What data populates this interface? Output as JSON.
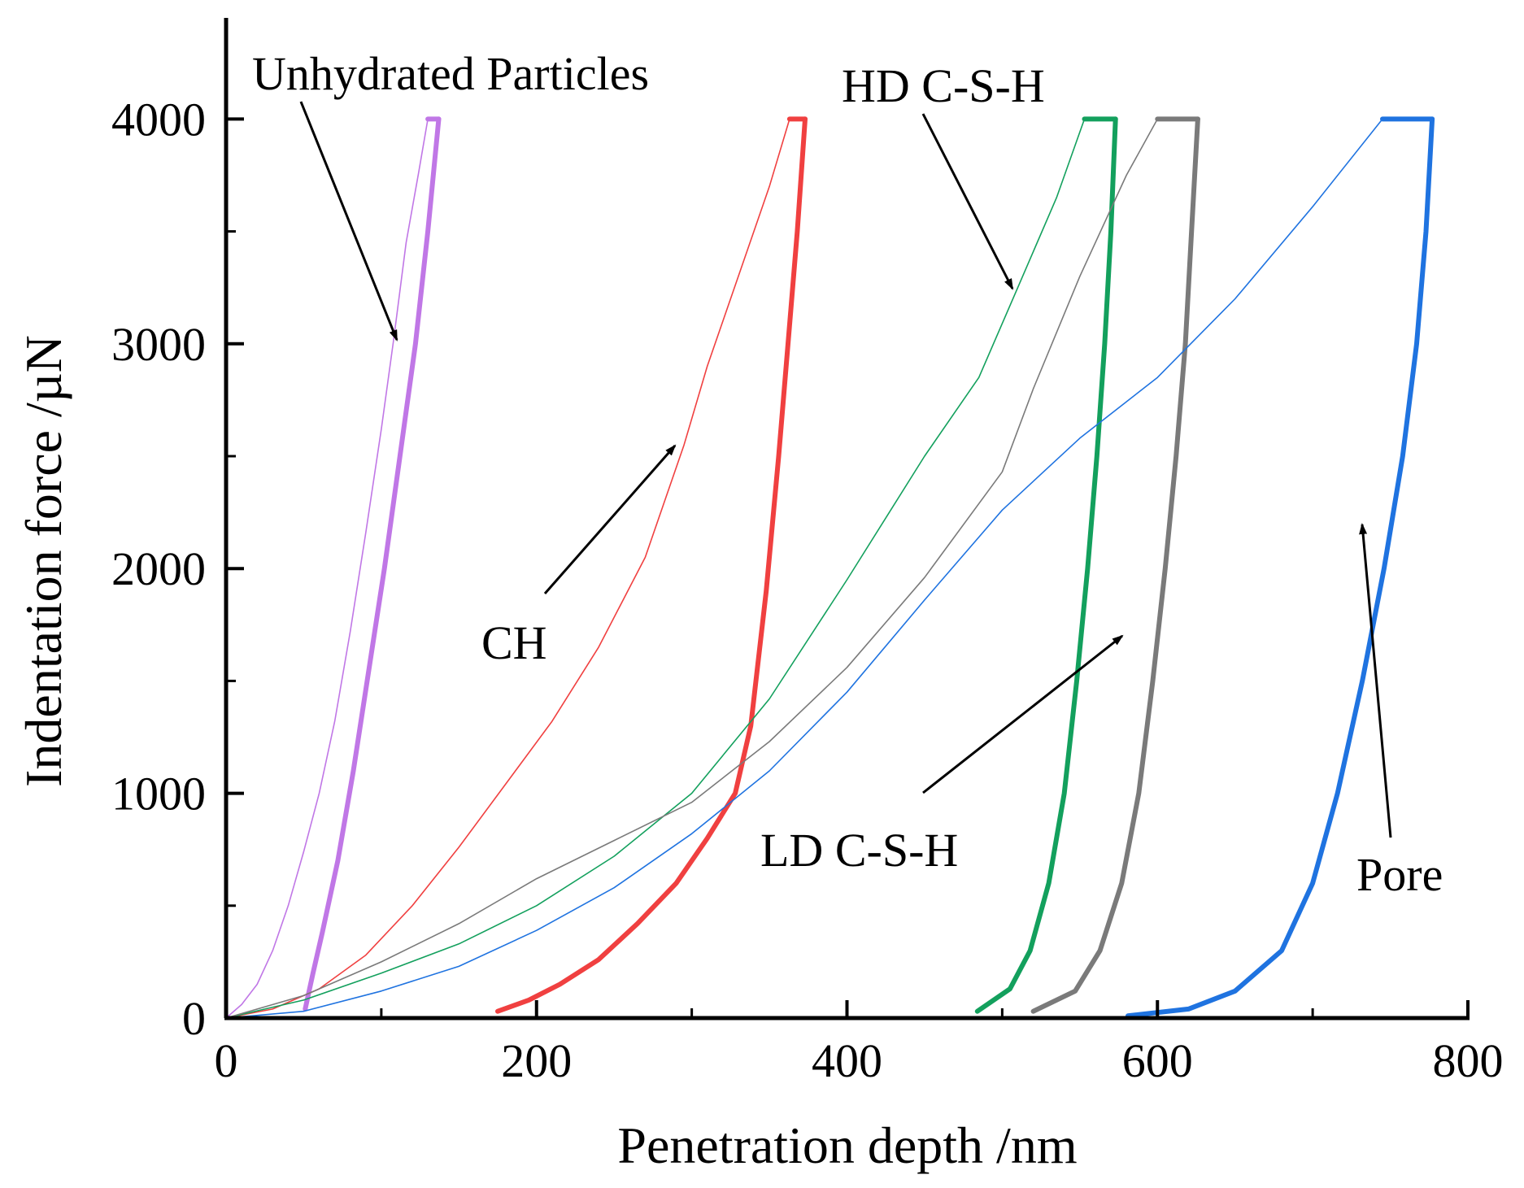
{
  "chart_data": {
    "type": "line",
    "xlabel": "Penetration depth /nm",
    "ylabel": "Indentation force /µN",
    "xlim": [
      0,
      800
    ],
    "ylim": [
      0,
      4450
    ],
    "xticks": [
      0,
      200,
      400,
      600,
      800
    ],
    "yticks": [
      0,
      1000,
      2000,
      3000,
      4000
    ],
    "series": [
      {
        "name": "Unhydrated Particles",
        "color": "#c077e6",
        "loading": [
          [
            0,
            0
          ],
          [
            10,
            60
          ],
          [
            20,
            150
          ],
          [
            30,
            300
          ],
          [
            40,
            500
          ],
          [
            50,
            740
          ],
          [
            60,
            1000
          ],
          [
            70,
            1320
          ],
          [
            80,
            1720
          ],
          [
            90,
            2160
          ],
          [
            100,
            2620
          ],
          [
            108,
            3020
          ],
          [
            116,
            3450
          ],
          [
            124,
            3760
          ],
          [
            130,
            4000
          ]
        ],
        "holding": [
          [
            130,
            4000
          ],
          [
            137,
            4000
          ]
        ],
        "unloading": [
          [
            137,
            4000
          ],
          [
            130,
            3500
          ],
          [
            122,
            3000
          ],
          [
            112,
            2500
          ],
          [
            102,
            2000
          ],
          [
            92,
            1550
          ],
          [
            82,
            1100
          ],
          [
            72,
            700
          ],
          [
            62,
            380
          ],
          [
            56,
            200
          ],
          [
            51,
            40
          ]
        ]
      },
      {
        "name": "CH",
        "color": "#f04040",
        "loading": [
          [
            0,
            0
          ],
          [
            30,
            40
          ],
          [
            60,
            130
          ],
          [
            90,
            280
          ],
          [
            120,
            500
          ],
          [
            150,
            760
          ],
          [
            180,
            1040
          ],
          [
            210,
            1320
          ],
          [
            240,
            1650
          ],
          [
            270,
            2050
          ],
          [
            295,
            2550
          ],
          [
            310,
            2900
          ],
          [
            330,
            3300
          ],
          [
            350,
            3700
          ],
          [
            363,
            4000
          ]
        ],
        "holding": [
          [
            363,
            4000
          ],
          [
            373,
            4000
          ]
        ],
        "unloading": [
          [
            373,
            4000
          ],
          [
            368,
            3500
          ],
          [
            362,
            3000
          ],
          [
            356,
            2500
          ],
          [
            348,
            1900
          ],
          [
            338,
            1300
          ],
          [
            328,
            1000
          ],
          [
            310,
            800
          ],
          [
            290,
            600
          ],
          [
            265,
            420
          ],
          [
            240,
            260
          ],
          [
            215,
            150
          ],
          [
            195,
            80
          ],
          [
            175,
            30
          ]
        ]
      },
      {
        "name": "HD C-S-H",
        "color": "#13a05d",
        "loading": [
          [
            0,
            0
          ],
          [
            50,
            80
          ],
          [
            100,
            200
          ],
          [
            150,
            330
          ],
          [
            200,
            500
          ],
          [
            250,
            720
          ],
          [
            300,
            1000
          ],
          [
            350,
            1420
          ],
          [
            400,
            1950
          ],
          [
            450,
            2500
          ],
          [
            485,
            2850
          ],
          [
            510,
            3250
          ],
          [
            535,
            3650
          ],
          [
            553,
            4000
          ]
        ],
        "holding": [
          [
            553,
            4000
          ],
          [
            573,
            4000
          ]
        ],
        "unloading": [
          [
            573,
            4000
          ],
          [
            570,
            3500
          ],
          [
            566,
            3000
          ],
          [
            561,
            2500
          ],
          [
            555,
            2000
          ],
          [
            548,
            1500
          ],
          [
            540,
            1000
          ],
          [
            530,
            600
          ],
          [
            518,
            300
          ],
          [
            505,
            130
          ],
          [
            484,
            30
          ]
        ]
      },
      {
        "name": "LD C-S-H",
        "color": "#7a7a7a",
        "loading": [
          [
            0,
            0
          ],
          [
            50,
            100
          ],
          [
            100,
            250
          ],
          [
            150,
            420
          ],
          [
            200,
            620
          ],
          [
            250,
            790
          ],
          [
            300,
            960
          ],
          [
            350,
            1230
          ],
          [
            400,
            1560
          ],
          [
            450,
            1960
          ],
          [
            500,
            2430
          ],
          [
            520,
            2800
          ],
          [
            550,
            3300
          ],
          [
            580,
            3750
          ],
          [
            600,
            4000
          ]
        ],
        "holding": [
          [
            600,
            4000
          ],
          [
            626,
            4000
          ]
        ],
        "unloading": [
          [
            626,
            4000
          ],
          [
            622,
            3500
          ],
          [
            618,
            3000
          ],
          [
            612,
            2500
          ],
          [
            605,
            2000
          ],
          [
            597,
            1500
          ],
          [
            588,
            1000
          ],
          [
            577,
            600
          ],
          [
            563,
            300
          ],
          [
            547,
            120
          ],
          [
            520,
            30
          ]
        ]
      },
      {
        "name": "Pore",
        "color": "#1f73e0",
        "loading": [
          [
            0,
            0
          ],
          [
            50,
            30
          ],
          [
            100,
            120
          ],
          [
            150,
            230
          ],
          [
            200,
            390
          ],
          [
            250,
            580
          ],
          [
            300,
            820
          ],
          [
            350,
            1100
          ],
          [
            400,
            1450
          ],
          [
            450,
            1860
          ],
          [
            500,
            2260
          ],
          [
            550,
            2580
          ],
          [
            600,
            2850
          ],
          [
            650,
            3200
          ],
          [
            700,
            3610
          ],
          [
            745,
            4000
          ]
        ],
        "holding": [
          [
            745,
            4000
          ],
          [
            777,
            4000
          ]
        ],
        "unloading": [
          [
            777,
            4000
          ],
          [
            773,
            3500
          ],
          [
            767,
            3000
          ],
          [
            758,
            2500
          ],
          [
            746,
            2000
          ],
          [
            732,
            1500
          ],
          [
            716,
            1000
          ],
          [
            700,
            600
          ],
          [
            680,
            300
          ],
          [
            650,
            120
          ],
          [
            620,
            40
          ],
          [
            581,
            10
          ]
        ]
      }
    ],
    "annotations": [
      {
        "label": "Unhydrated Particles"
      },
      {
        "label": "CH"
      },
      {
        "label": "HD C-S-H"
      },
      {
        "label": "LD C-S-H"
      },
      {
        "label": "Pore"
      }
    ]
  }
}
